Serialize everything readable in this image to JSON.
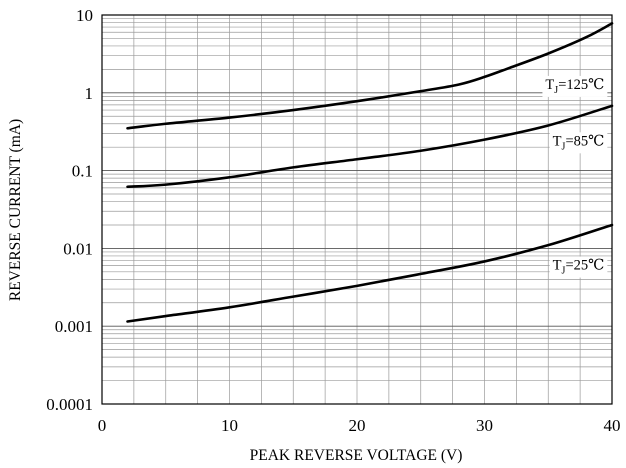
{
  "chart_data": {
    "type": "line",
    "xlabel": "PEAK REVERSE VOLTAGE (V)",
    "ylabel": "REVERSE CURRENT (mA)",
    "xlim": [
      0,
      40
    ],
    "ylim": [
      0.0001,
      10
    ],
    "yscale": "log",
    "grid": true,
    "x_ticks": [
      "0",
      "10",
      "20",
      "30",
      "40"
    ],
    "y_ticks": [
      "0.0001",
      "0.001",
      "0.01",
      "0.1",
      "1",
      "10"
    ],
    "series": [
      {
        "name": "TJ=125℃",
        "label_parts": [
          "T",
          "J",
          "=125℃"
        ],
        "x": [
          2,
          5,
          10,
          15,
          20,
          25,
          28,
          30,
          32,
          35,
          38,
          40
        ],
        "y": [
          0.35,
          0.4,
          0.48,
          0.6,
          0.78,
          1.05,
          1.28,
          1.6,
          2.1,
          3.2,
          5.2,
          7.8
        ]
      },
      {
        "name": "TJ=85℃",
        "label_parts": [
          "T",
          "J",
          "=85℃"
        ],
        "x": [
          2,
          5,
          10,
          15,
          20,
          25,
          30,
          35,
          40
        ],
        "y": [
          0.062,
          0.066,
          0.082,
          0.11,
          0.14,
          0.18,
          0.25,
          0.38,
          0.68
        ]
      },
      {
        "name": "TJ=25℃",
        "label_parts": [
          "T",
          "J",
          "=25℃"
        ],
        "x": [
          2,
          5,
          10,
          15,
          20,
          25,
          30,
          35,
          40
        ],
        "y": [
          0.00115,
          0.00135,
          0.00175,
          0.0024,
          0.0033,
          0.0047,
          0.0068,
          0.011,
          0.02
        ]
      }
    ]
  }
}
